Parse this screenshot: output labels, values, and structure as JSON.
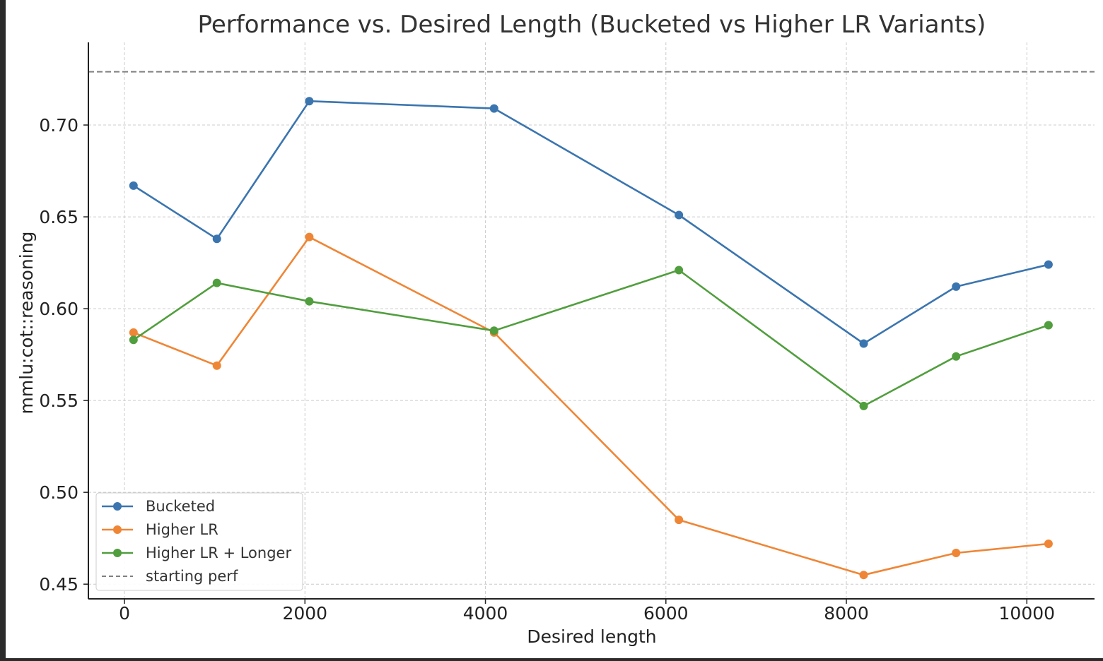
{
  "chart_data": {
    "type": "line",
    "title": "Performance vs. Desired Length (Bucketed vs Higher LR Variants)",
    "xlabel": "Desired length",
    "ylabel": "mmlu:cot::reasoning",
    "xlim": [
      -400,
      10750
    ],
    "ylim": [
      0.442,
      0.745
    ],
    "xticks": [
      0,
      2000,
      4000,
      6000,
      8000,
      10000
    ],
    "yticks": [
      0.45,
      0.5,
      0.55,
      0.6,
      0.65,
      0.7
    ],
    "ytick_labels": [
      "0.45",
      "0.50",
      "0.55",
      "0.60",
      "0.65",
      "0.70"
    ],
    "grid": true,
    "legend_position": "lower-left",
    "x": [
      100,
      1024,
      2048,
      4096,
      6144,
      8192,
      9216,
      10240
    ],
    "series": [
      {
        "name": "Bucketed",
        "color": "#3b75af",
        "values": [
          0.667,
          0.638,
          0.713,
          0.709,
          0.651,
          0.581,
          0.612,
          0.624
        ]
      },
      {
        "name": "Higher LR",
        "color": "#ef8636",
        "values": [
          0.587,
          0.569,
          0.639,
          0.587,
          0.485,
          0.455,
          0.467,
          0.472
        ]
      },
      {
        "name": "Higher LR + Longer",
        "color": "#519e3e",
        "values": [
          0.583,
          0.614,
          0.604,
          0.588,
          0.621,
          0.547,
          0.574,
          0.591
        ]
      }
    ],
    "reference_line": {
      "name": "starting perf",
      "value": 0.729,
      "style": "dashed",
      "color": "#808080"
    }
  }
}
